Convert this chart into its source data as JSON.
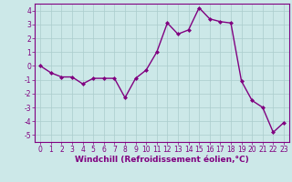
{
  "hours": [
    0,
    1,
    2,
    3,
    4,
    5,
    6,
    7,
    8,
    9,
    10,
    11,
    12,
    13,
    14,
    15,
    16,
    17,
    18,
    19,
    20,
    21,
    22,
    23
  ],
  "values": [
    0.0,
    -0.5,
    -0.8,
    -0.8,
    -1.3,
    -0.9,
    -0.9,
    -0.9,
    -2.3,
    -0.9,
    -0.3,
    1.0,
    3.1,
    2.3,
    2.6,
    4.2,
    3.4,
    3.2,
    3.1,
    -1.1,
    -2.5,
    -3.0,
    -4.8,
    -4.1
  ],
  "line_color": "#800080",
  "marker": "D",
  "marker_size": 2.0,
  "bg_color": "#cce8e8",
  "grid_color": "#aacccc",
  "xlabel": "Windchill (Refroidissement éolien,°C)",
  "xlim": [
    -0.5,
    23.5
  ],
  "ylim": [
    -5.5,
    4.5
  ],
  "xticks": [
    0,
    1,
    2,
    3,
    4,
    5,
    6,
    7,
    8,
    9,
    10,
    11,
    12,
    13,
    14,
    15,
    16,
    17,
    18,
    19,
    20,
    21,
    22,
    23
  ],
  "yticks": [
    -5,
    -4,
    -3,
    -2,
    -1,
    0,
    1,
    2,
    3,
    4
  ],
  "tick_fontsize": 5.5,
  "xlabel_fontsize": 6.5,
  "line_width": 1.0,
  "spine_color": "#800080",
  "tick_color": "#800080",
  "label_color": "#800080"
}
